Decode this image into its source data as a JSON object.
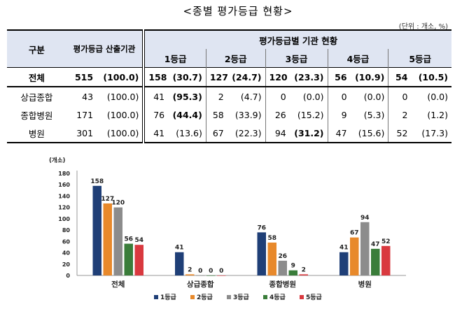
{
  "title": "<종별 평가등급 현황>",
  "unit": "(단위 : 개소, %)",
  "table": {
    "header": {
      "category": "구분",
      "total_institutions": "평가등급 산출기관",
      "grade_group": "평가등급별 기관 현황",
      "grades": [
        "1등급",
        "2등급",
        "3등급",
        "4등급",
        "5등급"
      ]
    },
    "rows": [
      {
        "label": "전체",
        "total": "515",
        "total_pct": "(100.0)",
        "cells": [
          [
            "158",
            "(30.7)"
          ],
          [
            "127",
            "(24.7)"
          ],
          [
            "120",
            "(23.3)"
          ],
          [
            "56",
            "(10.9)"
          ],
          [
            "54",
            "(10.5)"
          ]
        ]
      },
      {
        "label": "상급종합",
        "total": "43",
        "total_pct": "(100.0)",
        "cells": [
          [
            "41",
            "(95.3)"
          ],
          [
            "2",
            "(4.7)"
          ],
          [
            "0",
            "(0.0)"
          ],
          [
            "0",
            "(0.0)"
          ],
          [
            "0",
            "(0.0)"
          ]
        ]
      },
      {
        "label": "종합병원",
        "total": "171",
        "total_pct": "(100.0)",
        "cells": [
          [
            "76",
            "(44.4)"
          ],
          [
            "58",
            "(33.9)"
          ],
          [
            "26",
            "(15.2)"
          ],
          [
            "9",
            "(5.3)"
          ],
          [
            "2",
            "(1.2)"
          ]
        ]
      },
      {
        "label": "병원",
        "total": "301",
        "total_pct": "(100.0)",
        "cells": [
          [
            "41",
            "(13.6)"
          ],
          [
            "67",
            "(22.3)"
          ],
          [
            "94",
            "(31.2)"
          ],
          [
            "47",
            "(15.6)"
          ],
          [
            "52",
            "(17.3)"
          ]
        ]
      }
    ]
  },
  "chart_data": {
    "type": "bar",
    "ylabel": "(개소)",
    "ylim": [
      0,
      180
    ],
    "yticks": [
      0,
      20,
      40,
      60,
      80,
      100,
      120,
      140,
      160,
      180
    ],
    "categories": [
      "전체",
      "상급종합",
      "종합병원",
      "병원"
    ],
    "series": [
      {
        "name": "1등급",
        "color": "#1f3f77",
        "values": [
          158,
          41,
          76,
          41
        ]
      },
      {
        "name": "2등급",
        "color": "#e8892b",
        "values": [
          127,
          2,
          58,
          67
        ]
      },
      {
        "name": "3등급",
        "color": "#8c8c8c",
        "values": [
          120,
          0,
          26,
          94
        ]
      },
      {
        "name": "4등급",
        "color": "#3a7d3a",
        "values": [
          56,
          0,
          9,
          47
        ]
      },
      {
        "name": "5등급",
        "color": "#d9393f",
        "values": [
          54,
          0,
          2,
          52
        ]
      }
    ],
    "legend_position": "bottom",
    "grid": false
  }
}
